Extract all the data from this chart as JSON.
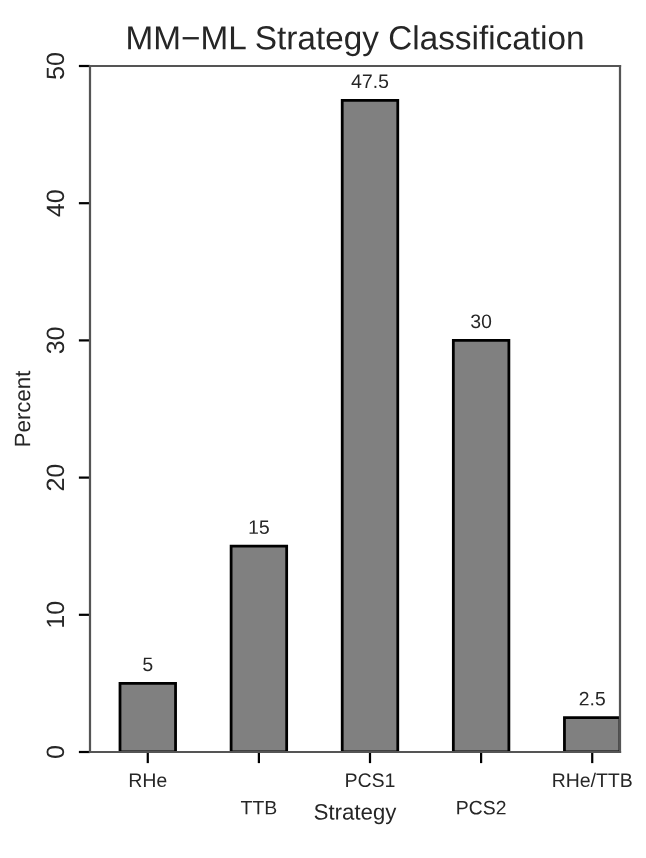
{
  "chart_data": {
    "type": "bar",
    "title": "MM−ML Strategy Classification",
    "xlabel": "Strategy",
    "ylabel": "Percent",
    "categories": [
      "RHe",
      "TTB",
      "PCS1",
      "PCS2",
      "RHe/TTB"
    ],
    "values": [
      5,
      15,
      47.5,
      30,
      2.5
    ],
    "color": "#808080",
    "ylim": [
      0,
      50
    ],
    "yticks": [
      0,
      10,
      20,
      30,
      40,
      50
    ],
    "data_labels": true,
    "grid": false
  }
}
